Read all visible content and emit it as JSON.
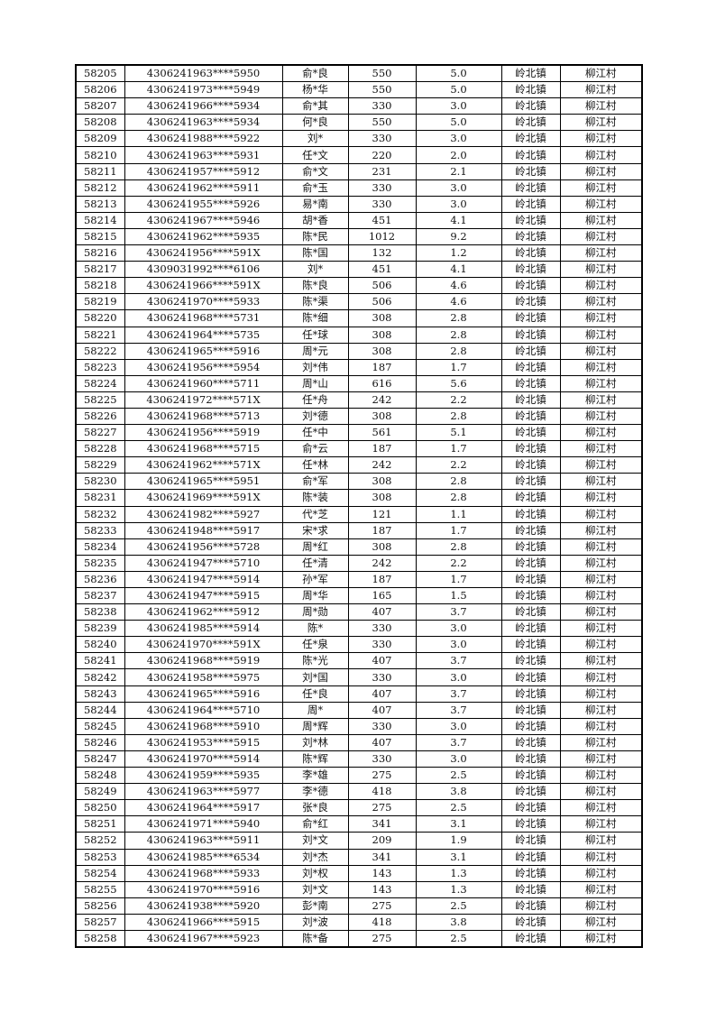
{
  "rows": [
    [
      "58205",
      "4306241963****5950",
      "俞*良",
      "550",
      "5.0",
      "岭北镇",
      "柳江村"
    ],
    [
      "58206",
      "4306241973****5949",
      "杨*华",
      "550",
      "5.0",
      "岭北镇",
      "柳江村"
    ],
    [
      "58207",
      "4306241966****5934",
      "俞*其",
      "330",
      "3.0",
      "岭北镇",
      "柳江村"
    ],
    [
      "58208",
      "4306241963****5934",
      "何*良",
      "550",
      "5.0",
      "岭北镇",
      "柳江村"
    ],
    [
      "58209",
      "4306241988****5922",
      "刘*",
      "330",
      "3.0",
      "岭北镇",
      "柳江村"
    ],
    [
      "58210",
      "4306241963****5931",
      "任*文",
      "220",
      "2.0",
      "岭北镇",
      "柳江村"
    ],
    [
      "58211",
      "4306241957****5912",
      "俞*文",
      "231",
      "2.1",
      "岭北镇",
      "柳江村"
    ],
    [
      "58212",
      "4306241962****5911",
      "俞*玉",
      "330",
      "3.0",
      "岭北镇",
      "柳江村"
    ],
    [
      "58213",
      "4306241955****5926",
      "易*南",
      "330",
      "3.0",
      "岭北镇",
      "柳江村"
    ],
    [
      "58214",
      "4306241967****5946",
      "胡*香",
      "451",
      "4.1",
      "岭北镇",
      "柳江村"
    ],
    [
      "58215",
      "4306241962****5935",
      "陈*民",
      "1012",
      "9.2",
      "岭北镇",
      "柳江村"
    ],
    [
      "58216",
      "4306241956****591X",
      "陈*国",
      "132",
      "1.2",
      "岭北镇",
      "柳江村"
    ],
    [
      "58217",
      "4309031992****6106",
      "刘*",
      "451",
      "4.1",
      "岭北镇",
      "柳江村"
    ],
    [
      "58218",
      "4306241966****591X",
      "陈*良",
      "506",
      "4.6",
      "岭北镇",
      "柳江村"
    ],
    [
      "58219",
      "4306241970****5933",
      "陈*渠",
      "506",
      "4.6",
      "岭北镇",
      "柳江村"
    ],
    [
      "58220",
      "4306241968****5731",
      "陈*细",
      "308",
      "2.8",
      "岭北镇",
      "柳江村"
    ],
    [
      "58221",
      "4306241964****5735",
      "任*球",
      "308",
      "2.8",
      "岭北镇",
      "柳江村"
    ],
    [
      "58222",
      "4306241965****5916",
      "周*元",
      "308",
      "2.8",
      "岭北镇",
      "柳江村"
    ],
    [
      "58223",
      "4306241956****5954",
      "刘*伟",
      "187",
      "1.7",
      "岭北镇",
      "柳江村"
    ],
    [
      "58224",
      "4306241960****5711",
      "周*山",
      "616",
      "5.6",
      "岭北镇",
      "柳江村"
    ],
    [
      "58225",
      "4306241972****571X",
      "任*舟",
      "242",
      "2.2",
      "岭北镇",
      "柳江村"
    ],
    [
      "58226",
      "4306241968****5713",
      "刘*德",
      "308",
      "2.8",
      "岭北镇",
      "柳江村"
    ],
    [
      "58227",
      "4306241956****5919",
      "任*中",
      "561",
      "5.1",
      "岭北镇",
      "柳江村"
    ],
    [
      "58228",
      "4306241968****5715",
      "俞*云",
      "187",
      "1.7",
      "岭北镇",
      "柳江村"
    ],
    [
      "58229",
      "4306241962****571X",
      "任*林",
      "242",
      "2.2",
      "岭北镇",
      "柳江村"
    ],
    [
      "58230",
      "4306241965****5951",
      "俞*军",
      "308",
      "2.8",
      "岭北镇",
      "柳江村"
    ],
    [
      "58231",
      "4306241969****591X",
      "陈*装",
      "308",
      "2.8",
      "岭北镇",
      "柳江村"
    ],
    [
      "58232",
      "4306241982****5927",
      "代*芝",
      "121",
      "1.1",
      "岭北镇",
      "柳江村"
    ],
    [
      "58233",
      "4306241948****5917",
      "宋*求",
      "187",
      "1.7",
      "岭北镇",
      "柳江村"
    ],
    [
      "58234",
      "4306241956****5728",
      "周*红",
      "308",
      "2.8",
      "岭北镇",
      "柳江村"
    ],
    [
      "58235",
      "4306241947****5710",
      "任*清",
      "242",
      "2.2",
      "岭北镇",
      "柳江村"
    ],
    [
      "58236",
      "4306241947****5914",
      "孙*军",
      "187",
      "1.7",
      "岭北镇",
      "柳江村"
    ],
    [
      "58237",
      "4306241947****5915",
      "周*华",
      "165",
      "1.5",
      "岭北镇",
      "柳江村"
    ],
    [
      "58238",
      "4306241962****5912",
      "周*勋",
      "407",
      "3.7",
      "岭北镇",
      "柳江村"
    ],
    [
      "58239",
      "4306241985****5914",
      "陈*",
      "330",
      "3.0",
      "岭北镇",
      "柳江村"
    ],
    [
      "58240",
      "4306241970****591X",
      "任*泉",
      "330",
      "3.0",
      "岭北镇",
      "柳江村"
    ],
    [
      "58241",
      "4306241968****5919",
      "陈*光",
      "407",
      "3.7",
      "岭北镇",
      "柳江村"
    ],
    [
      "58242",
      "4306241958****5975",
      "刘*国",
      "330",
      "3.0",
      "岭北镇",
      "柳江村"
    ],
    [
      "58243",
      "4306241965****5916",
      "任*良",
      "407",
      "3.7",
      "岭北镇",
      "柳江村"
    ],
    [
      "58244",
      "4306241964****5710",
      "周*",
      "407",
      "3.7",
      "岭北镇",
      "柳江村"
    ],
    [
      "58245",
      "4306241968****5910",
      "周*辉",
      "330",
      "3.0",
      "岭北镇",
      "柳江村"
    ],
    [
      "58246",
      "4306241953****5915",
      "刘*林",
      "407",
      "3.7",
      "岭北镇",
      "柳江村"
    ],
    [
      "58247",
      "4306241970****5914",
      "陈*辉",
      "330",
      "3.0",
      "岭北镇",
      "柳江村"
    ],
    [
      "58248",
      "4306241959****5935",
      "李*雄",
      "275",
      "2.5",
      "岭北镇",
      "柳江村"
    ],
    [
      "58249",
      "4306241963****5977",
      "李*德",
      "418",
      "3.8",
      "岭北镇",
      "柳江村"
    ],
    [
      "58250",
      "4306241964****5917",
      "张*良",
      "275",
      "2.5",
      "岭北镇",
      "柳江村"
    ],
    [
      "58251",
      "4306241971****5940",
      "俞*红",
      "341",
      "3.1",
      "岭北镇",
      "柳江村"
    ],
    [
      "58252",
      "4306241963****5911",
      "刘*文",
      "209",
      "1.9",
      "岭北镇",
      "柳江村"
    ],
    [
      "58253",
      "4306241985****6534",
      "刘*杰",
      "341",
      "3.1",
      "岭北镇",
      "柳江村"
    ],
    [
      "58254",
      "4306241968****5933",
      "刘*权",
      "143",
      "1.3",
      "岭北镇",
      "柳江村"
    ],
    [
      "58255",
      "4306241970****5916",
      "刘*文",
      "143",
      "1.3",
      "岭北镇",
      "柳江村"
    ],
    [
      "58256",
      "4306241938****5920",
      "彭*南",
      "275",
      "2.5",
      "岭北镇",
      "柳江村"
    ],
    [
      "58257",
      "4306241966****5915",
      "刘*波",
      "418",
      "3.8",
      "岭北镇",
      "柳江村"
    ],
    [
      "58258",
      "4306241967****5923",
      "陈*备",
      "275",
      "2.5",
      "岭北镇",
      "柳江村"
    ]
  ]
}
